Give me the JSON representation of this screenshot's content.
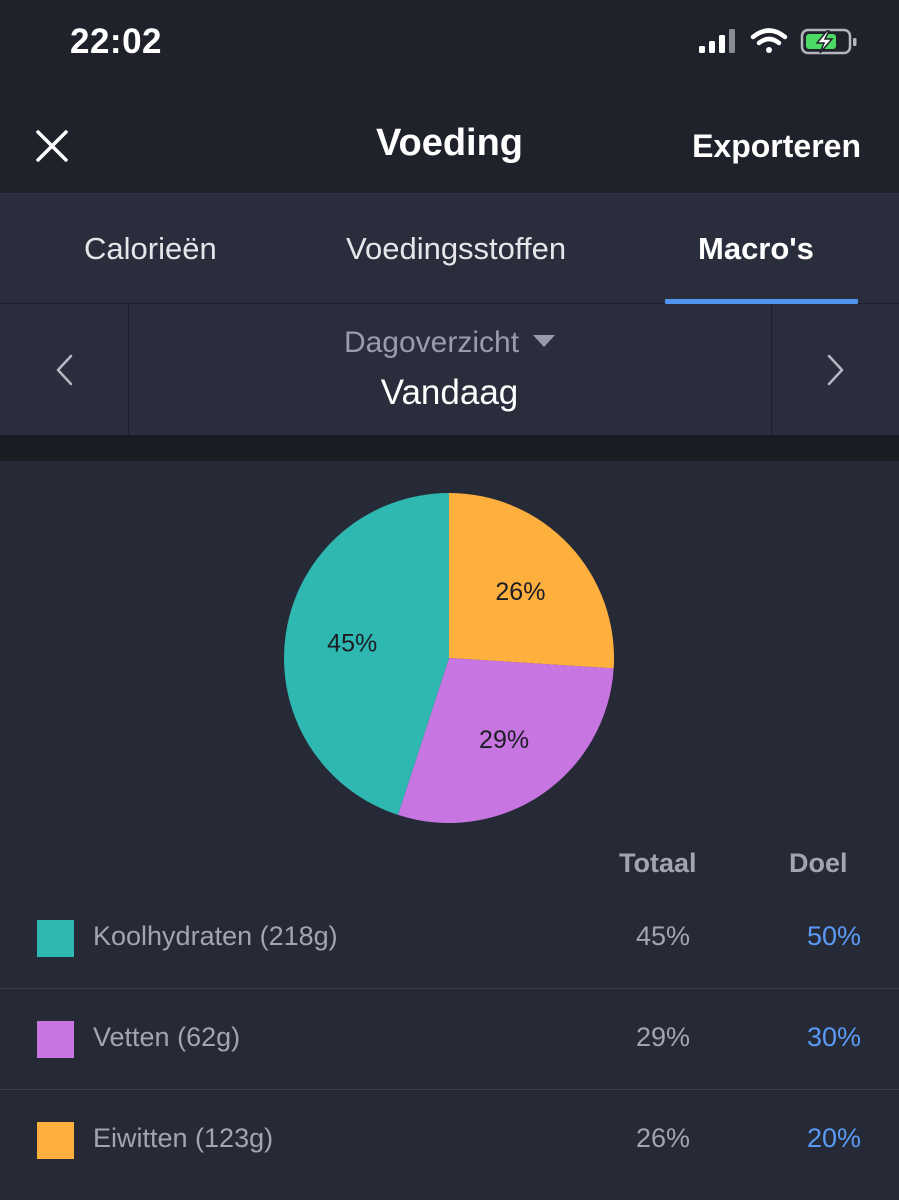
{
  "status_bar": {
    "time": "22:02"
  },
  "nav": {
    "title": "Voeding",
    "export_label": "Exporteren"
  },
  "tabs": [
    {
      "label": "Calorieën",
      "active": false
    },
    {
      "label": "Voedingsstoffen",
      "active": false
    },
    {
      "label": "Macro's",
      "active": true
    }
  ],
  "period": {
    "label": "Dagoverzicht",
    "day": "Vandaag"
  },
  "chart_data": {
    "type": "pie",
    "slices": [
      {
        "label": "Eiwitten",
        "value": 26,
        "display": "26%",
        "color": "#fdb03e"
      },
      {
        "label": "Vetten",
        "value": 29,
        "display": "29%",
        "color": "#c776e1"
      },
      {
        "label": "Koolhydraten",
        "value": 45,
        "display": "45%",
        "color": "#2eb8b1"
      }
    ]
  },
  "table": {
    "headers": {
      "total": "Totaal",
      "goal": "Doel"
    },
    "rows": [
      {
        "name": "Koolhydraten (218g)",
        "total": "45%",
        "goal": "50%",
        "color": "#2eb8b1"
      },
      {
        "name": "Vetten (62g)",
        "total": "29%",
        "goal": "30%",
        "color": "#c776e1"
      },
      {
        "name": "Eiwitten (123g)",
        "total": "26%",
        "goal": "20%",
        "color": "#fdb03e"
      }
    ]
  },
  "colors": {
    "accent": "#4f94ef",
    "goal_text": "#5a9af5",
    "background": "#262936"
  }
}
